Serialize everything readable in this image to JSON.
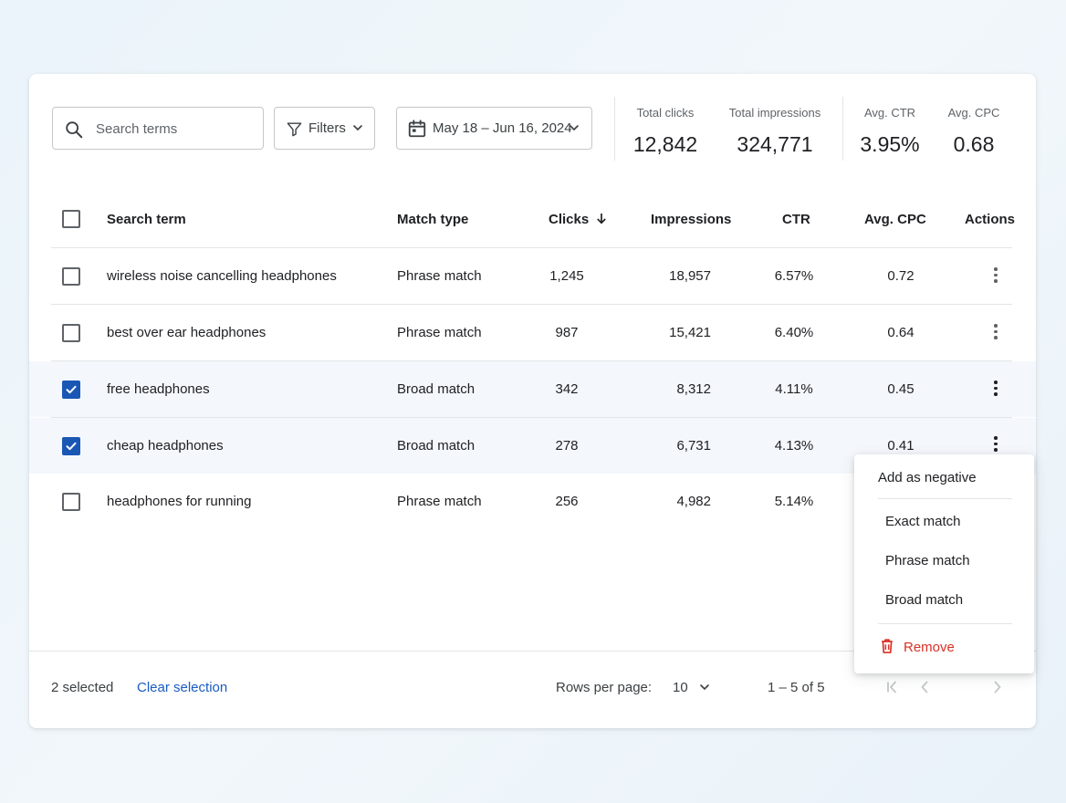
{
  "toolbar": {
    "search_placeholder": "Search terms",
    "filters_label": "Filters",
    "date_range": "May 18 – Jun 16, 2024"
  },
  "stats": [
    {
      "label": "Total clicks",
      "value": "12,842"
    },
    {
      "label": "Total impressions",
      "value": "324,771"
    },
    {
      "label": "Avg. CTR",
      "value": "3.95%"
    },
    {
      "label": "Avg. CPC",
      "value": "0.68"
    }
  ],
  "table": {
    "headers": {
      "term": "Search term",
      "match": "Match type",
      "clicks": "Clicks",
      "impressions": "Impressions",
      "ctr": "CTR",
      "cpc": "Avg. CPC",
      "actions": "Actions"
    },
    "sort_column": "clicks",
    "sort_direction": "descending",
    "rows": [
      {
        "term": "wireless noise cancelling headphones",
        "match": "Phrase match",
        "clicks": "1,245",
        "impressions": "18,957",
        "ctr": "6.57%",
        "cpc": "0.72",
        "selected": false
      },
      {
        "term": "best over ear headphones",
        "match": "Phrase match",
        "clicks": "987",
        "impressions": "15,421",
        "ctr": "6.40%",
        "cpc": "0.64",
        "selected": false
      },
      {
        "term": "free headphones",
        "match": "Broad match",
        "clicks": "342",
        "impressions": "8,312",
        "ctr": "4.11%",
        "cpc": "0.45",
        "selected": true
      },
      {
        "term": "cheap headphones",
        "match": "Broad match",
        "clicks": "278",
        "impressions": "6,731",
        "ctr": "4.13%",
        "cpc": "0.41",
        "selected": true
      },
      {
        "term": "headphones for running",
        "match": "Phrase match",
        "clicks": "256",
        "impressions": "4,982",
        "ctr": "5.14%",
        "cpc": "",
        "selected": false
      }
    ]
  },
  "footer": {
    "selected_count": "2 selected",
    "clear_selection": "Clear selection",
    "rows_per_page_label": "Rows per page:",
    "rows_per_page_value": "10",
    "range": "1 – 5 of 5"
  },
  "menu": {
    "header": "Add as negative",
    "items": [
      "Exact match",
      "Phrase match",
      "Broad match"
    ],
    "remove": "Remove"
  },
  "colors": {
    "accent": "#1a57b5",
    "link": "#1a5bc2",
    "danger": "#d93025"
  }
}
